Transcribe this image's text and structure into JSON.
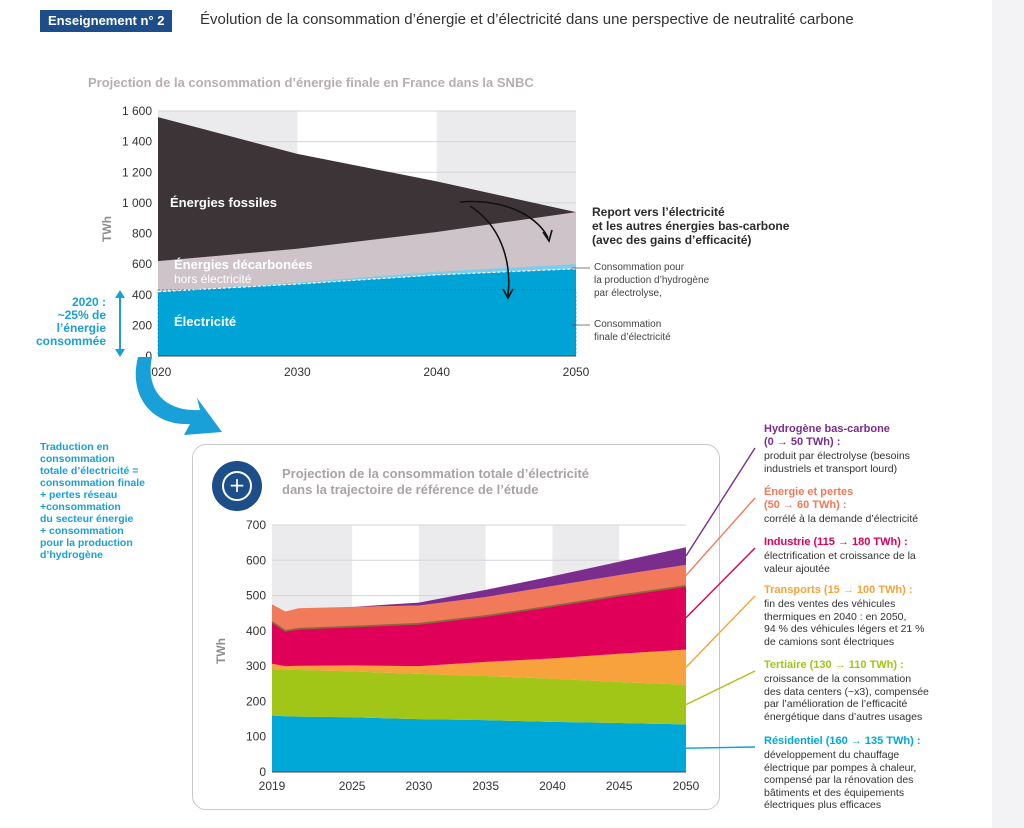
{
  "header": {
    "badge": "Enseignement n° 2",
    "title": "Évolution de la consommation d’énergie et d’électricité dans une perspective de neutralité carbone"
  },
  "chart1": {
    "title": "Projection de la consommation d’énergie finale en France dans la SNBC",
    "ylabel": "TWh",
    "labels": {
      "fossiles": "Énergies fossiles",
      "decarbonees": "Énergies décarbonées",
      "hors": "hors électricité",
      "electricite": "Électricité"
    },
    "left_note": [
      "2020 :",
      "~25% de",
      "l’énergie",
      "consommée"
    ],
    "annotation_report": [
      "Report vers l’électricité",
      "et les autres énergies bas-carbone",
      "(avec des gains d’efficacité)"
    ],
    "annotation_h2": [
      "Consommation pour",
      "la production d’hydrogène",
      "par électrolyse,"
    ],
    "annotation_finale": [
      "Consommation",
      "finale d’électricité"
    ]
  },
  "chart2": {
    "title_line1": "Projection de la consommation totale d’électricité",
    "title_line2": "dans la trajectoire de référence de l’étude",
    "ylabel": "TWh",
    "left_note": [
      "Traduction en",
      "consommation",
      "totale d’électricité =",
      "consommation finale",
      "+ pertes réseau",
      "+consommation",
      "du secteur énergie",
      "+ consommation",
      "pour la production",
      "d’hydrogène"
    ],
    "legend": [
      {
        "title": [
          "Hydrogène bas-carbone",
          "(0 → 50 TWh) :"
        ],
        "desc": [
          "produit par électrolyse (besoins",
          "industriels et transport lourd)"
        ],
        "color": "#7b2d8e"
      },
      {
        "title": [
          "Énergie et pertes",
          "(50 → 60 TWh) :"
        ],
        "desc": [
          "corrélé à la demande d’électricité"
        ],
        "color": "#f07a5a"
      },
      {
        "title": [
          "Industrie (115 → 180 TWh) :"
        ],
        "desc": [
          "électrification et croissance de la",
          "valeur ajoutée"
        ],
        "color": "#e0005a"
      },
      {
        "title": [
          "Transports (15 → 100 TWh) :"
        ],
        "desc": [
          "fin des ventes des véhicules",
          "thermiques en 2040 : en 2050,",
          "94 % des véhicules légers et 21 %",
          "de camions sont électriques"
        ],
        "color": "#f7a23c"
      },
      {
        "title": [
          "Tertiaire (130 → 110 TWh) :"
        ],
        "desc": [
          "croissance de la consommation",
          "des data centers (~x3), compensée",
          "par l’amélioration de l’efficacité",
          "énergétique dans d’autres usages"
        ],
        "color": "#a2c617"
      },
      {
        "title": [
          "Résidentiel (160 → 135 TWh) :"
        ],
        "desc": [
          "développement du chauffage",
          "électrique par pompes à chaleur,",
          "compensé par la rénovation des",
          "bâtiments et des équipements",
          "électriques plus efficaces"
        ],
        "color": "#00a8d8"
      }
    ]
  },
  "chart_data": [
    {
      "type": "area",
      "title": "Projection de la consommation d’énergie finale en France dans la SNBC",
      "ylabel": "TWh",
      "x": [
        2020,
        2030,
        2040,
        2050
      ],
      "x_ticks": [
        "2020",
        "2030",
        "2040",
        "2050"
      ],
      "y_ticks": [
        "0",
        "200",
        "400",
        "600",
        "800",
        "1 000",
        "1 200",
        "1 400",
        "1 600"
      ],
      "ylim": [
        0,
        1600
      ],
      "series": [
        {
          "name": "Électricité",
          "values": [
            420,
            470,
            530,
            570
          ],
          "color": "#00a3d6"
        },
        {
          "name": "Énergies décarbonées hors électricité",
          "values": [
            200,
            230,
            280,
            370
          ],
          "color": "#cdc3c8"
        },
        {
          "name": "Énergies fossiles",
          "values": [
            940,
            620,
            330,
            0
          ],
          "color": "#3d3437"
        }
      ],
      "extra_series": {
        "name": "Consommation pour la production d’hydrogène par électrolyse",
        "values": [
          0,
          10,
          20,
          30
        ],
        "color": "#7ecbec"
      }
    },
    {
      "type": "area",
      "title": "Projection de la consommation totale d’électricité dans la trajectoire de référence de l’étude",
      "ylabel": "TWh",
      "x": [
        2019,
        2020,
        2021,
        2025,
        2030,
        2035,
        2040,
        2045,
        2050
      ],
      "x_ticks": [
        "2019",
        "2025",
        "2030",
        "2035",
        "2040",
        "2045",
        "2050"
      ],
      "y_ticks": [
        "0",
        "100",
        "200",
        "300",
        "400",
        "500",
        "600",
        "700"
      ],
      "ylim": [
        0,
        700
      ],
      "series": [
        {
          "name": "Résidentiel",
          "values": [
            160,
            158,
            157,
            155,
            150,
            147,
            142,
            139,
            135
          ],
          "color": "#00a8d8"
        },
        {
          "name": "Tertiaire",
          "values": [
            132,
            132,
            132,
            130,
            128,
            125,
            122,
            116,
            112
          ],
          "color": "#a2c617"
        },
        {
          "name": "Transports",
          "values": [
            15,
            10,
            12,
            17,
            22,
            40,
            58,
            80,
            100
          ],
          "color": "#f7a23c"
        },
        {
          "name": "Industrie",
          "values": [
            118,
            100,
            105,
            110,
            120,
            130,
            148,
            165,
            180
          ],
          "color": "#e0005a"
        },
        {
          "name": "Énergie et pertes",
          "values": [
            50,
            55,
            58,
            56,
            52,
            54,
            57,
            58,
            60
          ],
          "color": "#f07a5a"
        },
        {
          "name": "Hydrogène bas-carbone",
          "values": [
            0,
            0,
            0,
            0,
            8,
            20,
            28,
            38,
            50
          ],
          "color": "#7b2d8e"
        }
      ]
    }
  ],
  "colors": {
    "brand": "#1d4e89",
    "accent": "#1aa0d8"
  }
}
